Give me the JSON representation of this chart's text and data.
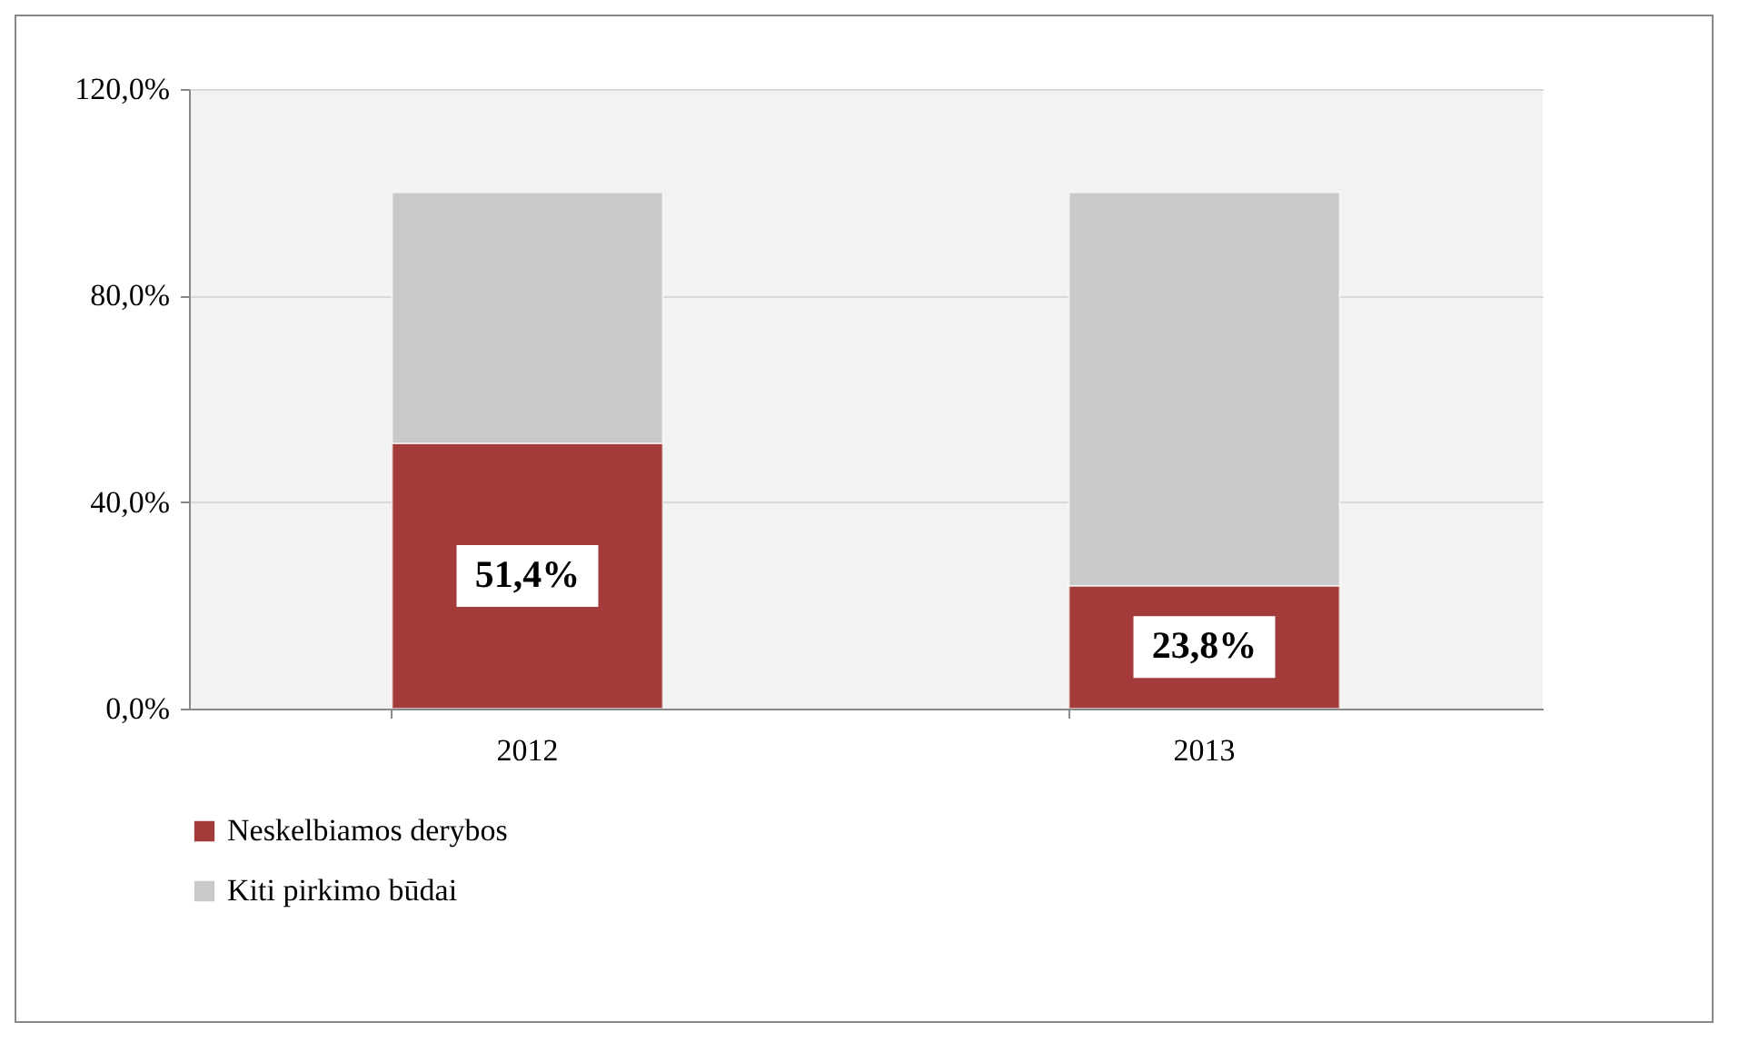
{
  "chart_data": {
    "type": "bar",
    "stacked": true,
    "categories": [
      "2012",
      "2013"
    ],
    "series": [
      {
        "name": "Neskelbiamos derybos",
        "color": "#a33b3a",
        "values": [
          51.4,
          23.8
        ],
        "value_labels": [
          "51,4%",
          "23,8%"
        ]
      },
      {
        "name": "Kiti pirkimo būdai",
        "color": "#c9c9c9",
        "values": [
          48.6,
          76.2
        ]
      }
    ],
    "ylim": [
      0,
      120
    ],
    "yticks": [
      {
        "value": 0,
        "label": "0,0%"
      },
      {
        "value": 40,
        "label": "40,0%"
      },
      {
        "value": 80,
        "label": "80,0%"
      },
      {
        "value": 120,
        "label": "120,0%"
      }
    ],
    "grid": "y",
    "legend": "bottom"
  }
}
